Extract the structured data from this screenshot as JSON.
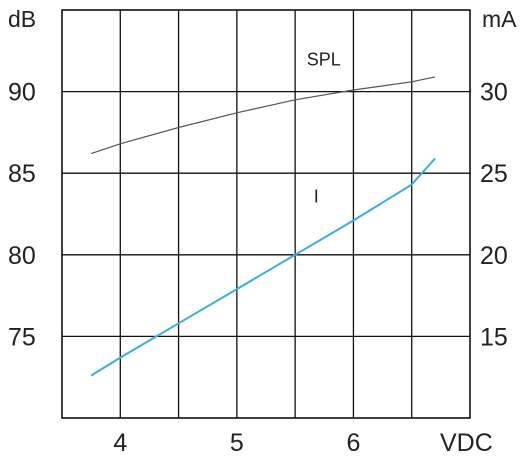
{
  "chart_data": {
    "type": "line",
    "x": [
      3.75,
      4.0,
      4.5,
      5.0,
      5.5,
      6.0,
      6.5,
      6.7
    ],
    "xlabel": "VDC",
    "xticks": [
      "4",
      "5",
      "6"
    ],
    "xlim": [
      3.5,
      7.0
    ],
    "grid": true,
    "left_axis": {
      "unit": "dB",
      "ticks": [
        "75",
        "80",
        "85",
        "90"
      ],
      "ylim": [
        70,
        95
      ]
    },
    "right_axis": {
      "unit": "mA",
      "ticks": [
        "15",
        "20",
        "25",
        "30"
      ],
      "ylim": [
        10,
        35
      ]
    },
    "series": [
      {
        "name": "SPL",
        "axis": "left",
        "color": "#555555",
        "values": [
          86.2,
          86.8,
          87.8,
          88.7,
          89.5,
          90.1,
          90.6,
          90.9
        ]
      },
      {
        "name": "I",
        "axis": "right",
        "color": "#3aaedc",
        "values": [
          12.6,
          13.7,
          15.8,
          17.9,
          20.0,
          22.1,
          24.3,
          25.9
        ]
      }
    ]
  }
}
